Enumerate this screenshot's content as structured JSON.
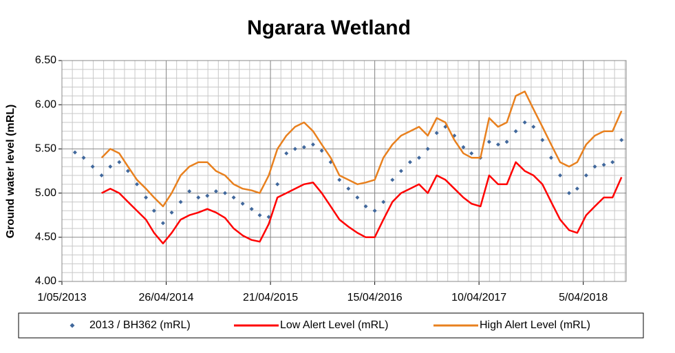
{
  "chart_data": {
    "type": "line",
    "title": "Ngarara Wetland",
    "y_label": "Ground water level (mRL)",
    "xlim": [
      "1/05/2013",
      "31/08/2018"
    ],
    "xticks": [
      "1/05/2013",
      "26/04/2014",
      "21/04/2015",
      "15/04/2016",
      "10/04/2017",
      "5/04/2018"
    ],
    "ylim": [
      4.0,
      6.5
    ],
    "yticks": [
      {
        "value": 4.0,
        "label": "4.00"
      },
      {
        "value": 4.5,
        "label": "4.50"
      },
      {
        "value": 5.0,
        "label": "5.00"
      },
      {
        "value": 5.5,
        "label": "5.50"
      },
      {
        "value": 6.0,
        "label": "6.00"
      },
      {
        "value": 6.5,
        "label": "6.50"
      }
    ],
    "grid": true,
    "legend": "bottom",
    "x": [
      "15/06/2013",
      "15/07/2013",
      "15/08/2013",
      "15/09/2013",
      "15/10/2013",
      "15/11/2013",
      "15/12/2013",
      "15/01/2014",
      "15/02/2014",
      "15/03/2014",
      "15/04/2014",
      "15/05/2014",
      "15/06/2014",
      "15/07/2014",
      "15/08/2014",
      "15/09/2014",
      "15/10/2014",
      "15/11/2014",
      "15/12/2014",
      "15/01/2015",
      "15/02/2015",
      "15/03/2015",
      "15/04/2015",
      "15/05/2015",
      "15/06/2015",
      "15/07/2015",
      "15/08/2015",
      "15/09/2015",
      "15/10/2015",
      "15/11/2015",
      "15/12/2015",
      "15/01/2016",
      "15/02/2016",
      "15/03/2016",
      "15/04/2016",
      "15/05/2016",
      "15/06/2016",
      "15/07/2016",
      "15/08/2016",
      "15/09/2016",
      "15/10/2016",
      "15/11/2016",
      "15/12/2016",
      "15/01/2017",
      "15/02/2017",
      "15/03/2017",
      "15/04/2017",
      "15/05/2017",
      "15/06/2017",
      "15/07/2017",
      "15/08/2017",
      "15/09/2017",
      "15/10/2017",
      "15/11/2017",
      "15/12/2017",
      "15/01/2018",
      "15/02/2018",
      "15/03/2018",
      "15/04/2018",
      "15/05/2018",
      "15/06/2018",
      "15/07/2018",
      "15/08/2018"
    ],
    "series": [
      {
        "name": "2013 / BH362 (mRL)",
        "color": "#41689c",
        "marker": "diamond",
        "values": [
          5.46,
          5.4,
          5.3,
          5.2,
          5.3,
          5.35,
          5.25,
          5.1,
          4.95,
          4.8,
          4.66,
          4.78,
          4.9,
          5.02,
          4.95,
          4.97,
          5.02,
          5.0,
          4.95,
          4.88,
          4.82,
          4.75,
          4.73,
          5.1,
          5.45,
          5.5,
          5.52,
          5.55,
          5.48,
          5.35,
          5.15,
          5.05,
          4.95,
          4.85,
          4.8,
          4.9,
          5.15,
          5.25,
          5.35,
          5.4,
          5.5,
          5.68,
          5.75,
          5.65,
          5.52,
          5.45,
          5.4,
          5.58,
          5.55,
          5.58,
          5.7,
          5.8,
          5.75,
          5.6,
          5.4,
          5.2,
          5.0,
          5.05,
          5.2,
          5.3,
          5.32,
          5.35,
          5.6
        ]
      },
      {
        "name": "Low Alert Level (mRL)",
        "color": "#ff0000",
        "values": [
          null,
          null,
          null,
          5.0,
          5.05,
          5.0,
          4.9,
          4.8,
          4.7,
          4.55,
          4.43,
          4.55,
          4.7,
          4.75,
          4.78,
          4.82,
          4.78,
          4.72,
          4.6,
          4.52,
          4.47,
          4.45,
          4.65,
          4.95,
          5.0,
          5.05,
          5.1,
          5.12,
          5.0,
          4.85,
          4.7,
          4.62,
          4.55,
          4.5,
          4.5,
          4.7,
          4.9,
          5.0,
          5.05,
          5.1,
          5.0,
          5.2,
          5.15,
          5.05,
          4.95,
          4.88,
          4.85,
          5.2,
          5.1,
          5.1,
          5.35,
          5.25,
          5.2,
          5.1,
          4.9,
          4.7,
          4.58,
          4.55,
          4.75,
          4.85,
          4.95,
          4.95,
          5.18
        ]
      },
      {
        "name": "High Alert Level (mRL)",
        "color": "#e8801e",
        "values": [
          null,
          null,
          null,
          5.4,
          5.5,
          5.45,
          5.3,
          5.15,
          5.05,
          4.95,
          4.85,
          5.0,
          5.2,
          5.3,
          5.35,
          5.35,
          5.25,
          5.2,
          5.1,
          5.05,
          5.03,
          5.0,
          5.2,
          5.5,
          5.65,
          5.75,
          5.8,
          5.7,
          5.55,
          5.4,
          5.2,
          5.15,
          5.1,
          5.12,
          5.15,
          5.4,
          5.55,
          5.65,
          5.7,
          5.75,
          5.65,
          5.85,
          5.8,
          5.6,
          5.45,
          5.4,
          5.4,
          5.85,
          5.75,
          5.8,
          6.1,
          6.15,
          5.95,
          5.75,
          5.55,
          5.35,
          5.3,
          5.35,
          5.55,
          5.65,
          5.7,
          5.7,
          5.93
        ]
      }
    ]
  }
}
